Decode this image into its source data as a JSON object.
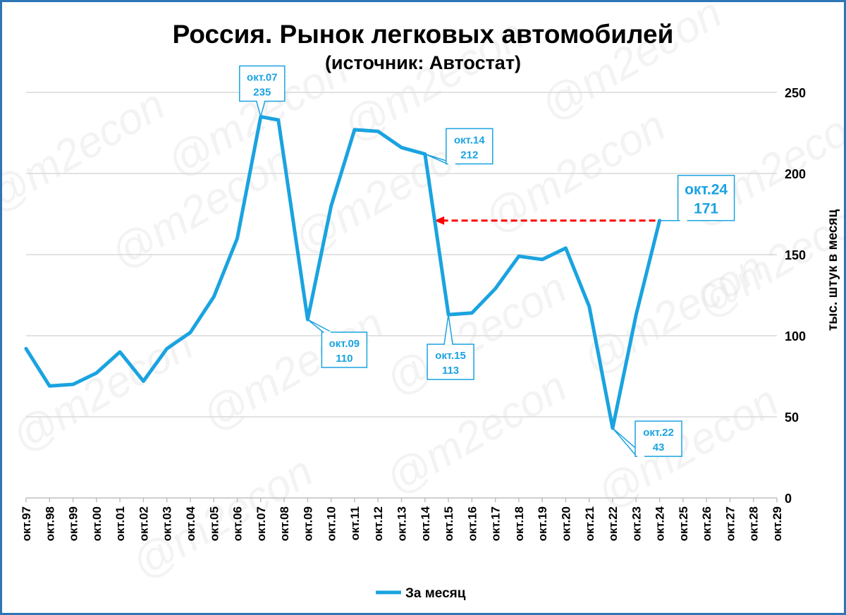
{
  "chart_data": {
    "type": "line",
    "title": "Россия. Рынок легковых автомобилей",
    "subtitle": "(источник: Автостат)",
    "ylabel": "тыс. штук в месяц",
    "xlabel": "",
    "ylim": [
      0,
      250
    ],
    "yticks": [
      "0",
      "50",
      "100",
      "150",
      "200",
      "250"
    ],
    "grid": true,
    "legend_position": "bottom",
    "categories": [
      "окт.97",
      "окт.98",
      "окт.99",
      "окт.00",
      "окт.01",
      "окт.02",
      "окт.03",
      "окт.04",
      "окт.05",
      "окт.06",
      "окт.07",
      "окт.08",
      "окт.09",
      "окт.10",
      "окт.11",
      "окт.12",
      "окт.13",
      "окт.14",
      "окт.15",
      "окт.16",
      "окт.17",
      "окт.18",
      "окт.19",
      "окт.20",
      "окт.21",
      "окт.22",
      "окт.23",
      "окт.24",
      "окт.25",
      "окт.26",
      "окт.27",
      "окт.28",
      "окт.29"
    ],
    "series": [
      {
        "name": "За месяц",
        "color": "#1aa3e0",
        "points": [
          [
            0,
            92
          ],
          [
            1,
            69
          ],
          [
            2,
            70
          ],
          [
            3,
            77
          ],
          [
            4,
            90
          ],
          [
            5,
            72
          ],
          [
            6,
            92
          ],
          [
            7,
            102
          ],
          [
            8,
            124
          ],
          [
            9,
            160
          ],
          [
            10,
            235
          ],
          [
            10.75,
            233
          ],
          [
            12,
            110
          ],
          [
            13,
            180
          ],
          [
            14,
            227
          ],
          [
            15,
            226
          ],
          [
            16,
            216
          ],
          [
            17,
            212
          ],
          [
            18,
            113
          ],
          [
            19,
            114
          ],
          [
            20,
            129
          ],
          [
            21,
            149
          ],
          [
            22,
            147
          ],
          [
            23,
            154
          ],
          [
            24,
            118
          ],
          [
            25,
            43
          ],
          [
            26,
            113
          ],
          [
            27,
            171
          ]
        ]
      }
    ],
    "annotations": [
      {
        "label": "окт.07",
        "value": "235",
        "x": 10,
        "y": 235
      },
      {
        "label": "окт.09",
        "value": "110",
        "x": 12,
        "y": 110
      },
      {
        "label": "окт.14",
        "value": "212",
        "x": 17,
        "y": 212
      },
      {
        "label": "окт.15",
        "value": "113",
        "x": 18,
        "y": 113
      },
      {
        "label": "окт.22",
        "value": "43",
        "x": 25,
        "y": 43
      },
      {
        "label": "окт.24",
        "value": "171",
        "x": 27,
        "y": 171
      }
    ],
    "reference_arrow": {
      "from_x": 27,
      "to_x": 17.4,
      "y": 171,
      "color": "#ff0000",
      "style": "dashed"
    },
    "watermark": "@m2econ"
  }
}
